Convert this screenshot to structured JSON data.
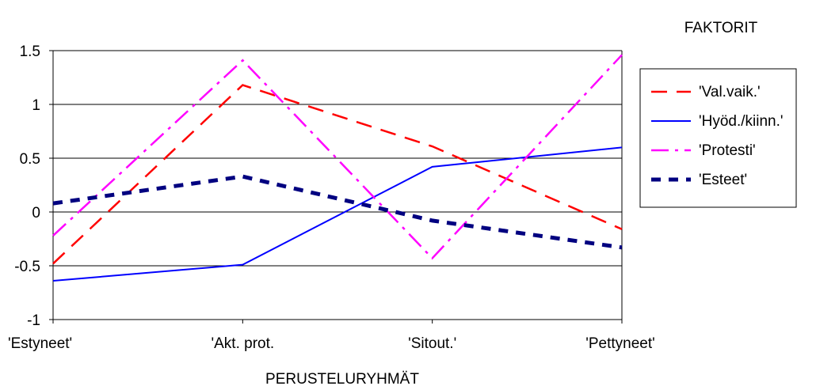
{
  "chart_data": {
    "type": "line",
    "title": "",
    "legend_title": "FAKTORIT",
    "xlabel": "PERUSTELURYHMÄT",
    "ylabel": "",
    "categories": [
      "'Estyneet'",
      "'Akt. prot.",
      "'Sitout.'",
      "'Pettyneet'"
    ],
    "ylim": [
      -1,
      1.5
    ],
    "yticks": [
      -1,
      -0.5,
      0,
      0.5,
      1,
      1.5
    ],
    "ytick_labels": [
      "-1",
      "-0.5",
      "0",
      "0.5",
      "1",
      "1.5"
    ],
    "grid": true,
    "legend_position": "right",
    "series": [
      {
        "name": "'Val.vaik.'",
        "values": [
          -0.48,
          1.18,
          0.61,
          -0.16
        ],
        "color": "#ff0000",
        "style": "dashed"
      },
      {
        "name": "'Hyöd./kiinn.'",
        "values": [
          -0.64,
          -0.49,
          0.42,
          0.6
        ],
        "color": "#0000ff",
        "style": "solid"
      },
      {
        "name": "'Protesti'",
        "values": [
          -0.22,
          1.41,
          -0.43,
          1.46
        ],
        "color": "#ff00ff",
        "style": "dashdot"
      },
      {
        "name": "'Esteet'",
        "values": [
          0.08,
          0.33,
          -0.08,
          -0.33
        ],
        "color": "#000080",
        "style": "heavy-dashed"
      }
    ]
  }
}
